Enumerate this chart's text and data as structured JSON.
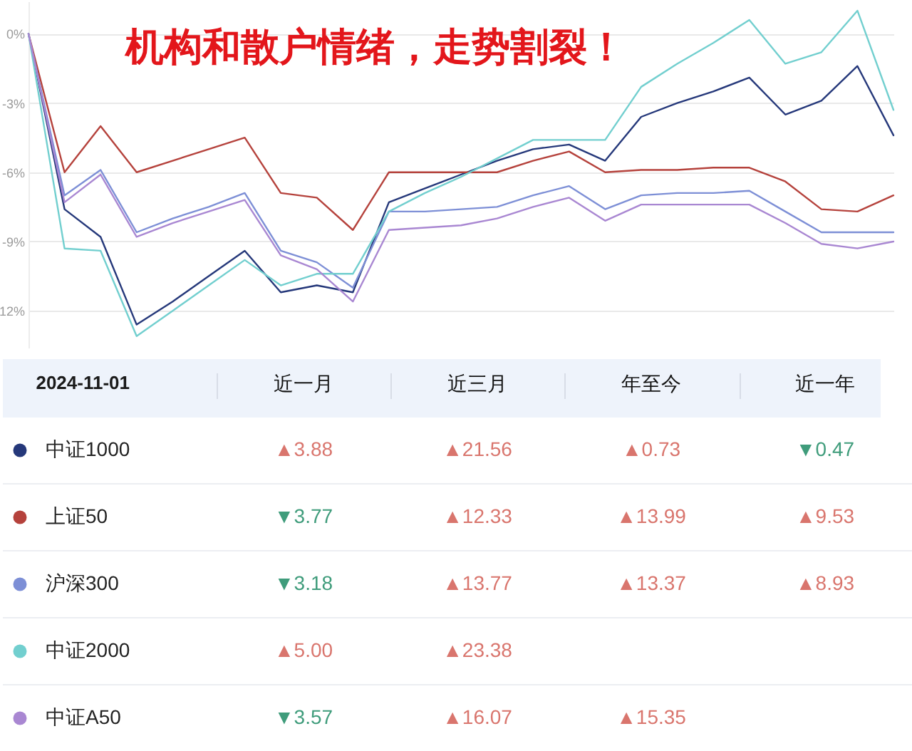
{
  "chart_data": [
    {
      "type": "line",
      "title": "机构和散户情绪，走势割裂！",
      "legend_title": "2024-11-01",
      "categories": [
        null,
        null,
        null,
        null,
        null,
        null,
        null,
        null,
        null,
        null,
        null,
        null,
        null,
        null,
        null,
        null,
        null,
        null,
        null,
        null,
        null,
        null,
        null,
        null,
        null
      ],
      "series": [
        {
          "name": "中证1000",
          "color": "#25387a",
          "values": [
            0,
            -7.6,
            -8.8,
            -12.6,
            -11.6,
            -10.5,
            -9.4,
            -11.2,
            -10.9,
            -11.2,
            -7.3,
            -6.7,
            -6.1,
            -5.5,
            -5.0,
            -4.8,
            -5.5,
            -3.6,
            -3.0,
            -2.5,
            -1.9,
            -3.5,
            -2.9,
            -1.4,
            -4.4
          ]
        },
        {
          "name": "上证50",
          "color": "#b5423c",
          "values": [
            0,
            -6.0,
            -4.0,
            -6.0,
            -5.5,
            -5.0,
            -4.5,
            -6.9,
            -7.1,
            -8.5,
            -6.0,
            -6.0,
            -6.0,
            -6.0,
            -5.5,
            -5.1,
            -6.0,
            -5.9,
            -5.9,
            -5.8,
            -5.8,
            -6.4,
            -7.6,
            -7.7,
            -7.0
          ]
        },
        {
          "name": "沪深300",
          "color": "#7d8fd6",
          "values": [
            0,
            -7.0,
            -5.9,
            -8.6,
            -8.0,
            -7.5,
            -6.9,
            -9.4,
            -9.9,
            -11.0,
            -7.7,
            -7.7,
            -7.6,
            -7.5,
            -7.0,
            -6.6,
            -7.6,
            -7.0,
            -6.9,
            -6.9,
            -6.8,
            -7.7,
            -8.6,
            -8.6,
            -8.6
          ]
        },
        {
          "name": "中证2000",
          "color": "#72cfcf",
          "values": [
            0,
            -9.3,
            -9.4,
            -13.1,
            -12.0,
            -10.9,
            -9.8,
            -10.9,
            -10.4,
            -10.4,
            -7.7,
            -6.9,
            -6.2,
            -5.4,
            -4.6,
            -4.6,
            -4.6,
            -2.3,
            -1.3,
            -0.4,
            0.6,
            -1.3,
            -0.8,
            1.0,
            -3.3
          ]
        },
        {
          "name": "中证A50",
          "color": "#a987d2",
          "values": [
            0,
            -7.3,
            -6.1,
            -8.8,
            -8.2,
            -7.7,
            -7.2,
            -9.6,
            -10.2,
            -11.6,
            -8.5,
            -8.4,
            -8.3,
            -8.0,
            -7.5,
            -7.1,
            -8.1,
            -7.4,
            -7.4,
            -7.4,
            -7.4,
            -8.2,
            -9.1,
            -9.3,
            -9.0
          ]
        }
      ],
      "ylim": [
        -13.6,
        1.4
      ],
      "yticks": [
        {
          "value": 0,
          "label": "0%"
        },
        {
          "value": -3,
          "label": "-3%"
        },
        {
          "value": -6,
          "label": "-6%"
        },
        {
          "value": -9,
          "label": "-9%"
        },
        {
          "value": -12,
          "label": "12%"
        }
      ],
      "grid": "y",
      "legend": "bottom left"
    },
    {
      "type": "other",
      "annotations": [
        "近一月",
        "近三月",
        "年至今",
        "近一年",
        "▲3.88",
        "▲21.56",
        "▲0.73",
        "▼0.47",
        "▼3.77",
        "▲12.33",
        "▲13.99",
        "▲9.53",
        "▼3.18",
        "▲13.77",
        "▲13.37",
        "▲8.93",
        "▲5.00",
        "▲23.38",
        "▼3.57",
        "▲16.07",
        "▲15.35"
      ]
    }
  ]
}
